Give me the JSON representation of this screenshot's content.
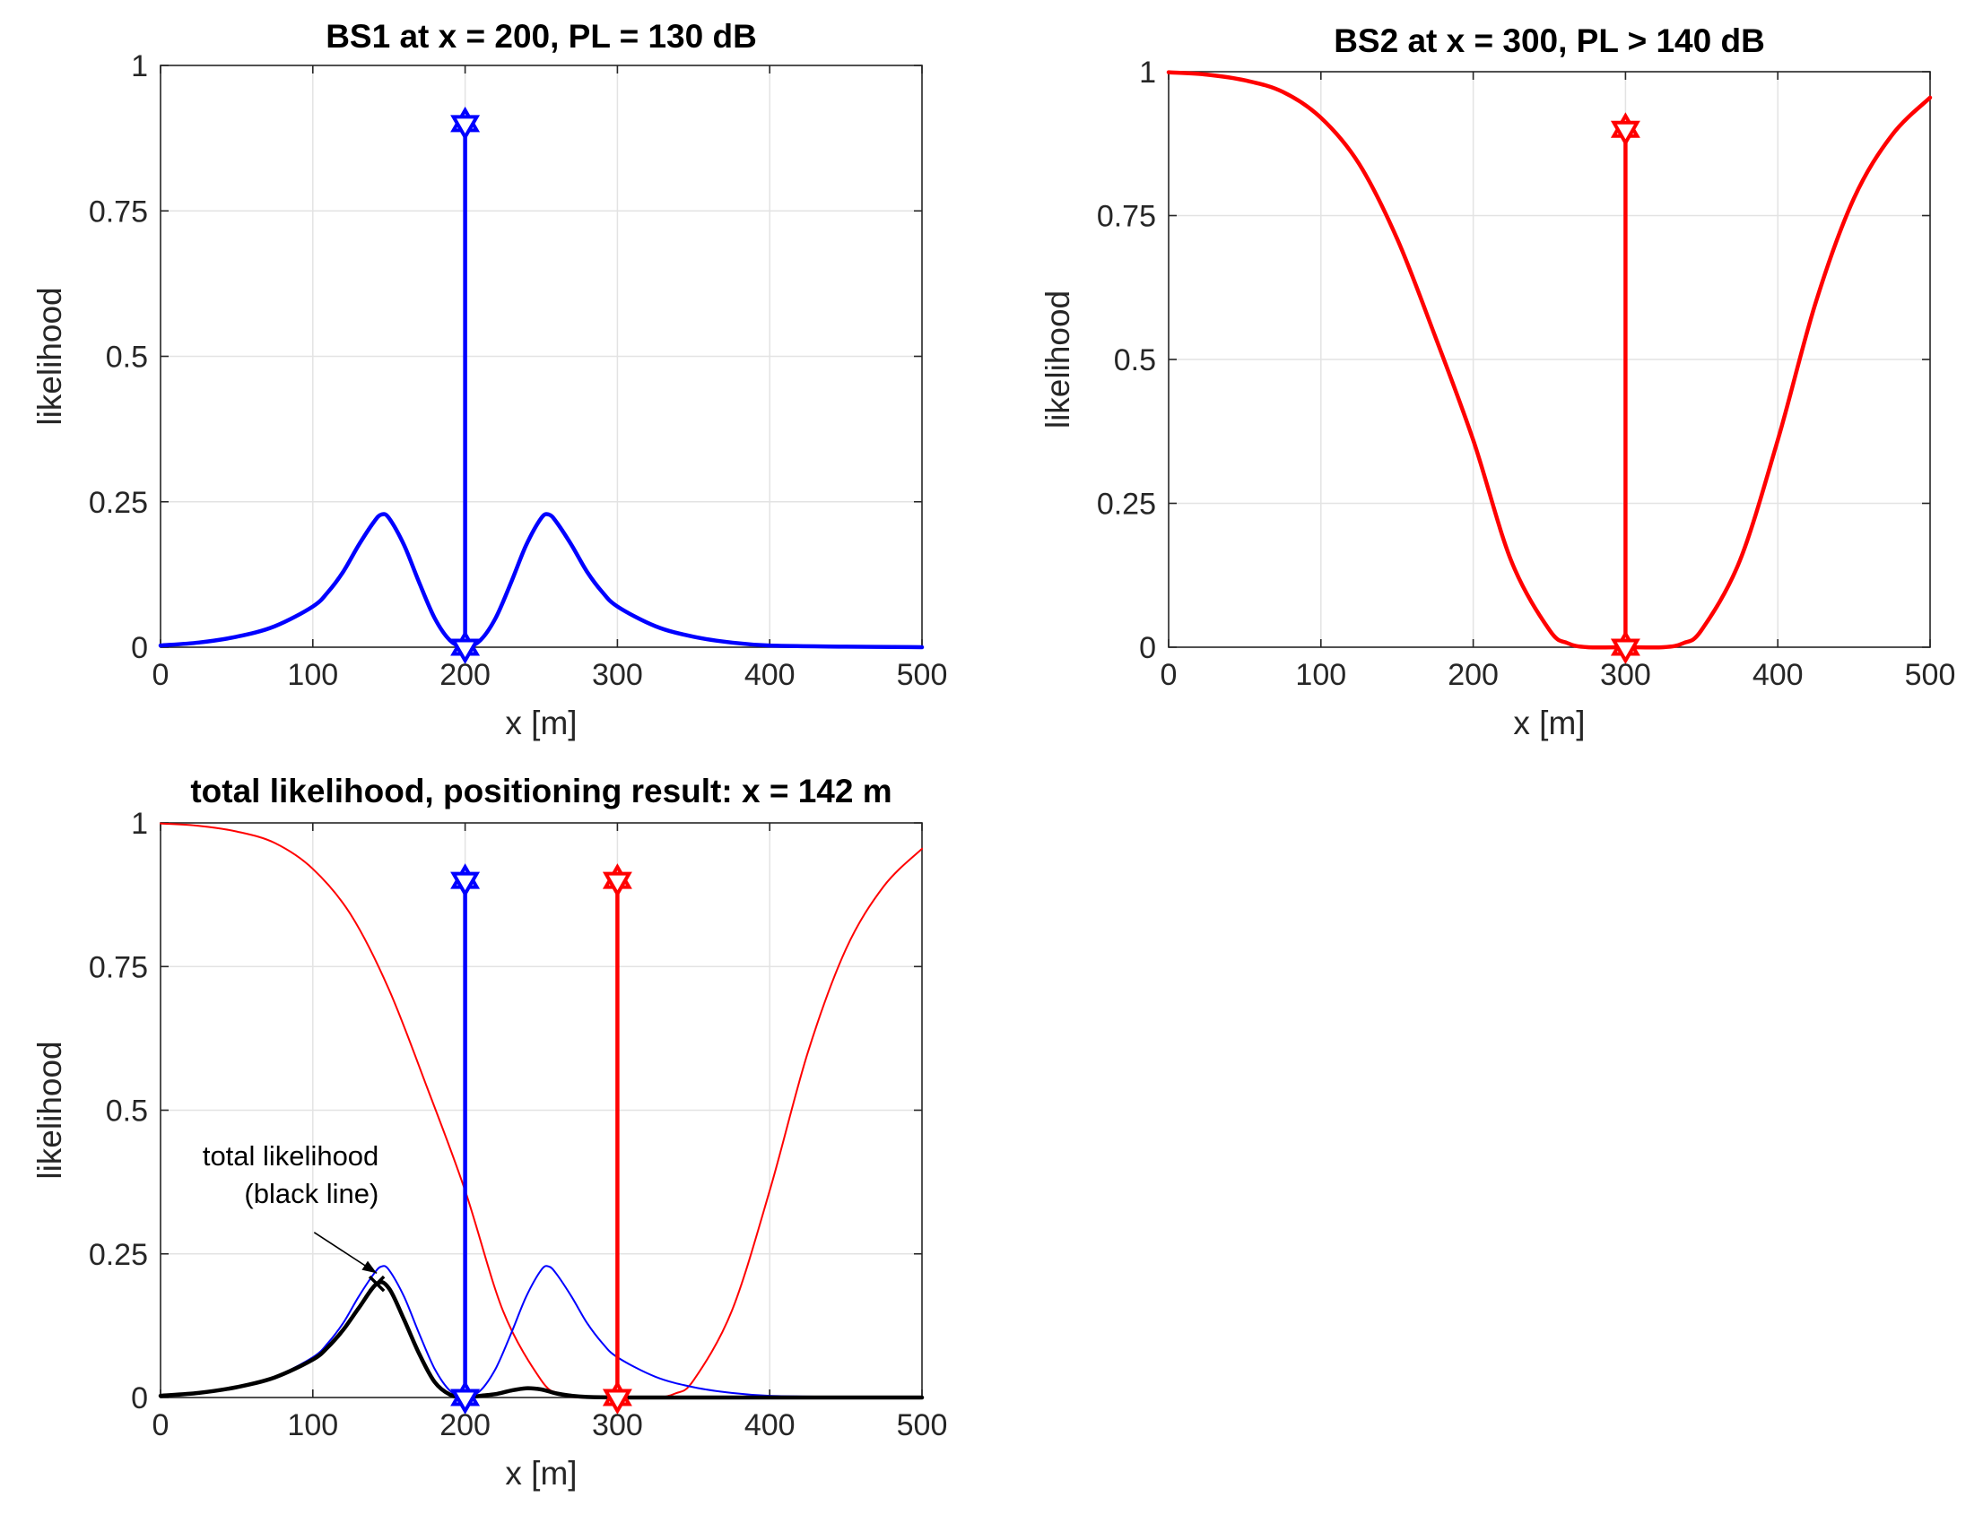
{
  "chart_data": [
    {
      "id": "bs1",
      "type": "line",
      "title": "BS1 at x = 200, PL = 130 dB",
      "xlabel": "x [m]",
      "ylabel": "likelihood",
      "xlim": [
        0,
        500
      ],
      "ylim": [
        0,
        1
      ],
      "xticks": [
        "0",
        "100",
        "200",
        "300",
        "400",
        "500"
      ],
      "yticks": [
        "0",
        "0.25",
        "0.5",
        "0.75",
        "1"
      ],
      "grid": true,
      "series": [
        {
          "name": "BS1 likelihood",
          "color": "#0000ff",
          "width": "thick",
          "x": [
            0,
            25,
            50,
            75,
            100,
            110,
            120,
            130,
            140,
            145,
            150,
            160,
            170,
            180,
            190,
            200,
            210,
            220,
            230,
            240,
            250,
            255,
            260,
            270,
            280,
            290,
            300,
            325,
            350,
            375,
            400,
            450,
            500
          ],
          "y": [
            0.003,
            0.008,
            0.018,
            0.036,
            0.07,
            0.095,
            0.13,
            0.175,
            0.215,
            0.228,
            0.222,
            0.175,
            0.11,
            0.05,
            0.012,
            0.0,
            0.012,
            0.05,
            0.11,
            0.175,
            0.222,
            0.228,
            0.215,
            0.175,
            0.13,
            0.095,
            0.07,
            0.036,
            0.018,
            0.008,
            0.003,
            0.001,
            0.0
          ]
        }
      ],
      "stems": [
        {
          "x": 200,
          "y_top": 0.9,
          "y_bottom": 0,
          "color": "#0000ff"
        }
      ]
    },
    {
      "id": "bs2",
      "type": "line",
      "title": "BS2 at x = 300, PL > 140 dB",
      "xlabel": "x [m]",
      "ylabel": "likelihood",
      "xlim": [
        0,
        500
      ],
      "ylim": [
        0,
        1
      ],
      "xticks": [
        "0",
        "100",
        "200",
        "300",
        "400",
        "500"
      ],
      "yticks": [
        "0",
        "0.25",
        "0.5",
        "0.75",
        "1"
      ],
      "grid": true,
      "series": [
        {
          "name": "BS2 likelihood",
          "color": "#ff0000",
          "width": "thick",
          "x": [
            0,
            25,
            50,
            75,
            100,
            125,
            150,
            175,
            200,
            225,
            250,
            262,
            275,
            300,
            325,
            338,
            350,
            375,
            400,
            425,
            450,
            475,
            500
          ],
          "y": [
            0.999,
            0.995,
            0.985,
            0.965,
            0.92,
            0.84,
            0.71,
            0.54,
            0.36,
            0.15,
            0.03,
            0.007,
            0.0,
            0.0,
            0.0,
            0.007,
            0.03,
            0.15,
            0.36,
            0.6,
            0.78,
            0.89,
            0.955
          ]
        }
      ],
      "stems": [
        {
          "x": 300,
          "y_top": 0.9,
          "y_bottom": 0,
          "color": "#ff0000"
        }
      ]
    },
    {
      "id": "total",
      "type": "line",
      "title": "total likelihood, positioning result: x = 142 m",
      "xlabel": "x [m]",
      "ylabel": "likelihood",
      "xlim": [
        0,
        500
      ],
      "ylim": [
        0,
        1
      ],
      "xticks": [
        "0",
        "100",
        "200",
        "300",
        "400",
        "500"
      ],
      "yticks": [
        "0",
        "0.25",
        "0.5",
        "0.75",
        "1"
      ],
      "grid": true,
      "series": [
        {
          "name": "BS2 likelihood",
          "color": "#ff0000",
          "width": "thin",
          "x": [
            0,
            25,
            50,
            75,
            100,
            125,
            150,
            175,
            200,
            225,
            250,
            262,
            275,
            300,
            325,
            338,
            350,
            375,
            400,
            425,
            450,
            475,
            500
          ],
          "y": [
            0.999,
            0.995,
            0.985,
            0.965,
            0.92,
            0.84,
            0.71,
            0.54,
            0.36,
            0.15,
            0.03,
            0.007,
            0.0,
            0.0,
            0.0,
            0.007,
            0.03,
            0.15,
            0.36,
            0.6,
            0.78,
            0.89,
            0.955
          ]
        },
        {
          "name": "BS1 likelihood",
          "color": "#0000ff",
          "width": "thin",
          "x": [
            0,
            25,
            50,
            75,
            100,
            110,
            120,
            130,
            140,
            145,
            150,
            160,
            170,
            180,
            190,
            200,
            210,
            220,
            230,
            240,
            250,
            255,
            260,
            270,
            280,
            290,
            300,
            325,
            350,
            375,
            400,
            450,
            500
          ],
          "y": [
            0.003,
            0.008,
            0.018,
            0.036,
            0.07,
            0.095,
            0.13,
            0.175,
            0.215,
            0.228,
            0.222,
            0.175,
            0.11,
            0.05,
            0.012,
            0.0,
            0.012,
            0.05,
            0.11,
            0.175,
            0.222,
            0.228,
            0.215,
            0.175,
            0.13,
            0.095,
            0.07,
            0.036,
            0.018,
            0.008,
            0.003,
            0.001,
            0.0
          ]
        },
        {
          "name": "total likelihood",
          "color": "#000000",
          "width": "thick",
          "x": [
            0,
            25,
            50,
            75,
            100,
            110,
            120,
            130,
            142,
            150,
            160,
            170,
            180,
            190,
            200,
            210,
            220,
            230,
            240,
            250,
            260,
            270,
            280,
            300,
            350,
            400,
            450,
            500
          ],
          "y": [
            0.003,
            0.008,
            0.018,
            0.035,
            0.066,
            0.088,
            0.118,
            0.155,
            0.198,
            0.19,
            0.135,
            0.075,
            0.027,
            0.005,
            0.0,
            0.003,
            0.006,
            0.012,
            0.016,
            0.014,
            0.007,
            0.003,
            0.001,
            0.0,
            0.0,
            0.0,
            0.0,
            0.0
          ]
        }
      ],
      "stems": [
        {
          "x": 200,
          "y_top": 0.9,
          "y_bottom": 0,
          "color": "#0000ff"
        },
        {
          "x": 300,
          "y_top": 0.9,
          "y_bottom": 0,
          "color": "#ff0000"
        }
      ],
      "marker": {
        "x": 142,
        "y": 0.198,
        "shape": "x",
        "color": "#000000"
      },
      "annotation": {
        "lines": [
          "total likelihood",
          "(black line)"
        ],
        "arrow_to": {
          "x": 142,
          "y": 0.21
        },
        "text_anchor_at": {
          "x": 95,
          "y": 0.42
        }
      }
    }
  ]
}
